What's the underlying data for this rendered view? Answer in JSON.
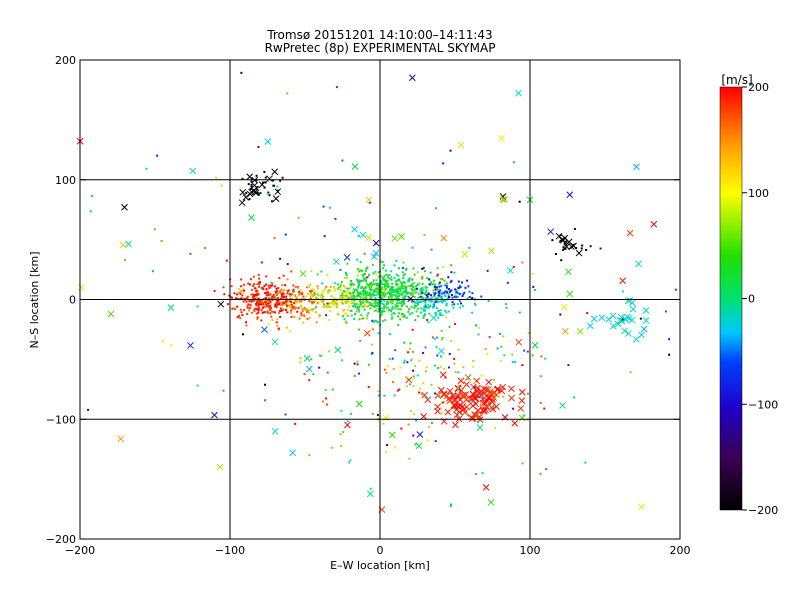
{
  "chart_data": {
    "type": "scatter",
    "title": "Tromsø 20151201 14:10:00–14:11:43",
    "subtitle": "RwPretec (8p) EXPERIMENTAL SKYMAP",
    "xlabel": "E–W location [km]",
    "ylabel": "N–S location [km]",
    "xlim": [
      -200,
      200
    ],
    "ylim": [
      -200,
      200
    ],
    "xticks": [
      -200,
      -100,
      0,
      100,
      200
    ],
    "yticks": [
      -200,
      -100,
      0,
      100,
      200
    ],
    "grid": true,
    "colorbar": {
      "label": "[m/s]",
      "range": [
        -200,
        200
      ],
      "ticks": [
        200,
        100,
        0,
        -100,
        -200
      ],
      "colormap": "rainbow (black → purple → blue → cyan → green → yellow → red)"
    },
    "marker_legend": {
      "cross": "x",
      "dot": "+"
    },
    "clusters": [
      {
        "name": "center",
        "center": [
          5,
          5
        ],
        "spread": [
          18,
          10
        ],
        "count": 700,
        "marker": "dot",
        "v_mean": 20,
        "v_spread": 25
      },
      {
        "name": "center-east-blue",
        "center": [
          45,
          5
        ],
        "spread": [
          8,
          6
        ],
        "count": 80,
        "marker": "dot",
        "v_mean": -110,
        "v_spread": 20
      },
      {
        "name": "center-east-cyan",
        "center": [
          35,
          -5
        ],
        "spread": [
          8,
          6
        ],
        "count": 60,
        "marker": "dot",
        "v_mean": -40,
        "v_spread": 20
      },
      {
        "name": "west-red",
        "center": [
          -75,
          0
        ],
        "spread": [
          12,
          8
        ],
        "count": 280,
        "marker": "dot",
        "v_mean": 190,
        "v_spread": 15
      },
      {
        "name": "west-orange",
        "center": [
          -55,
          -3
        ],
        "spread": [
          10,
          8
        ],
        "count": 110,
        "marker": "dot",
        "v_mean": 150,
        "v_spread": 20
      },
      {
        "name": "mid-west-yellow",
        "center": [
          -30,
          0
        ],
        "spread": [
          10,
          8
        ],
        "count": 120,
        "marker": "dot",
        "v_mean": 95,
        "v_spread": 20
      },
      {
        "name": "northwest-black",
        "center": [
          -80,
          95
        ],
        "spread": [
          8,
          6
        ],
        "count": 45,
        "marker": "mixed",
        "v_mean": -210,
        "v_spread": 5
      },
      {
        "name": "northeast-black",
        "center": [
          125,
          45
        ],
        "spread": [
          6,
          5
        ],
        "count": 30,
        "marker": "mixed",
        "v_mean": -210,
        "v_spread": 5
      },
      {
        "name": "southeast-red-crosses",
        "center": [
          60,
          -83
        ],
        "spread": [
          14,
          8
        ],
        "count": 110,
        "marker": "cross",
        "v_mean": 190,
        "v_spread": 10
      },
      {
        "name": "south-mixed",
        "center": [
          20,
          -60
        ],
        "spread": [
          45,
          30
        ],
        "count": 170,
        "marker": "dot",
        "v_mean": 60,
        "v_spread": 110
      },
      {
        "name": "east-right-cyan",
        "center": [
          165,
          -15
        ],
        "spread": [
          10,
          8
        ],
        "count": 25,
        "marker": "cross",
        "v_mean": -40,
        "v_spread": 15
      },
      {
        "name": "scattered-background",
        "center": [
          0,
          0
        ],
        "spread": [
          110,
          80
        ],
        "count": 240,
        "marker": "mixed",
        "v_mean": 30,
        "v_spread": 120
      }
    ]
  }
}
